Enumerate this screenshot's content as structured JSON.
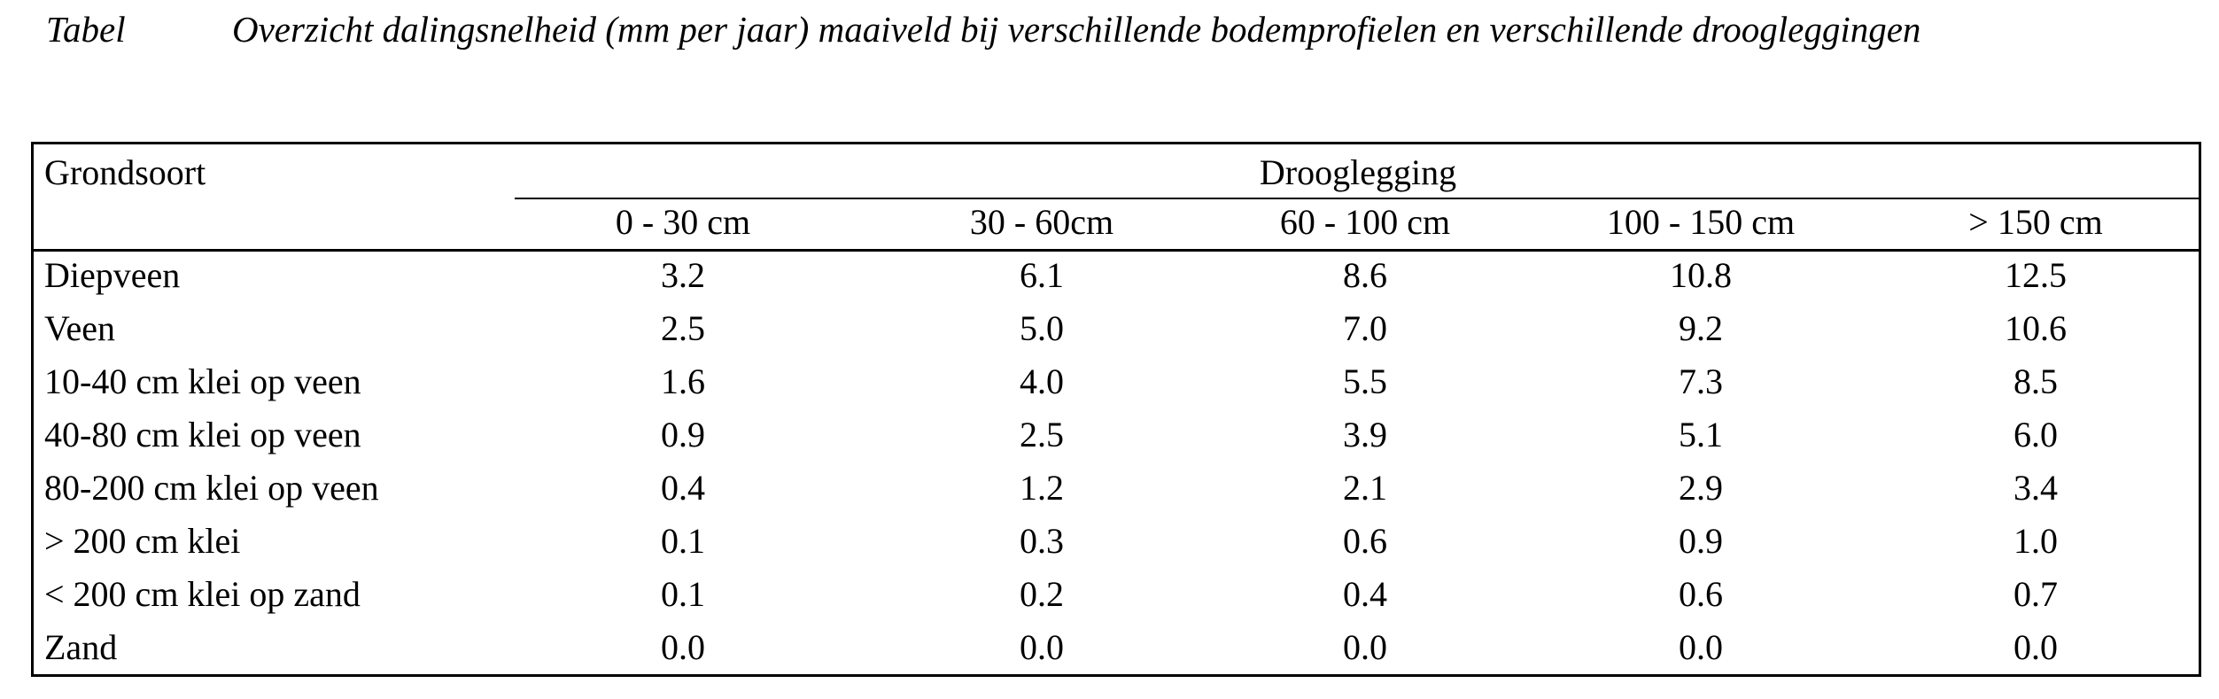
{
  "caption": {
    "label": "Tabel",
    "title": "Overzicht dalingsnelheid (mm per jaar) maaiveld bij verschillende bodemprofielen en verschillende droogleggingen"
  },
  "table": {
    "row_header": "Grondsoort",
    "group_header": "Drooglegging",
    "columns": [
      "0 - 30 cm",
      "30 - 60cm",
      "60 - 100 cm",
      "100 - 150 cm",
      "> 150 cm"
    ],
    "rows": [
      {
        "label": "Diepveen",
        "values": [
          "3.2",
          "6.1",
          "8.6",
          "10.8",
          "12.5"
        ]
      },
      {
        "label": "Veen",
        "values": [
          "2.5",
          "5.0",
          "7.0",
          "9.2",
          "10.6"
        ]
      },
      {
        "label": "10-40 cm klei op veen",
        "values": [
          "1.6",
          "4.0",
          "5.5",
          "7.3",
          "8.5"
        ]
      },
      {
        "label": "40-80 cm klei op veen",
        "values": [
          "0.9",
          "2.5",
          "3.9",
          "5.1",
          "6.0"
        ]
      },
      {
        "label": "80-200 cm klei op veen",
        "values": [
          "0.4",
          "1.2",
          "2.1",
          "2.9",
          "3.4"
        ]
      },
      {
        "label": "> 200 cm klei",
        "values": [
          "0.1",
          "0.3",
          "0.6",
          "0.9",
          "1.0"
        ]
      },
      {
        "label": "< 200 cm klei op zand",
        "values": [
          "0.1",
          "0.2",
          "0.4",
          "0.6",
          "0.7"
        ]
      },
      {
        "label": "Zand",
        "values": [
          "0.0",
          "0.0",
          "0.0",
          "0.0",
          "0.0"
        ]
      }
    ]
  }
}
